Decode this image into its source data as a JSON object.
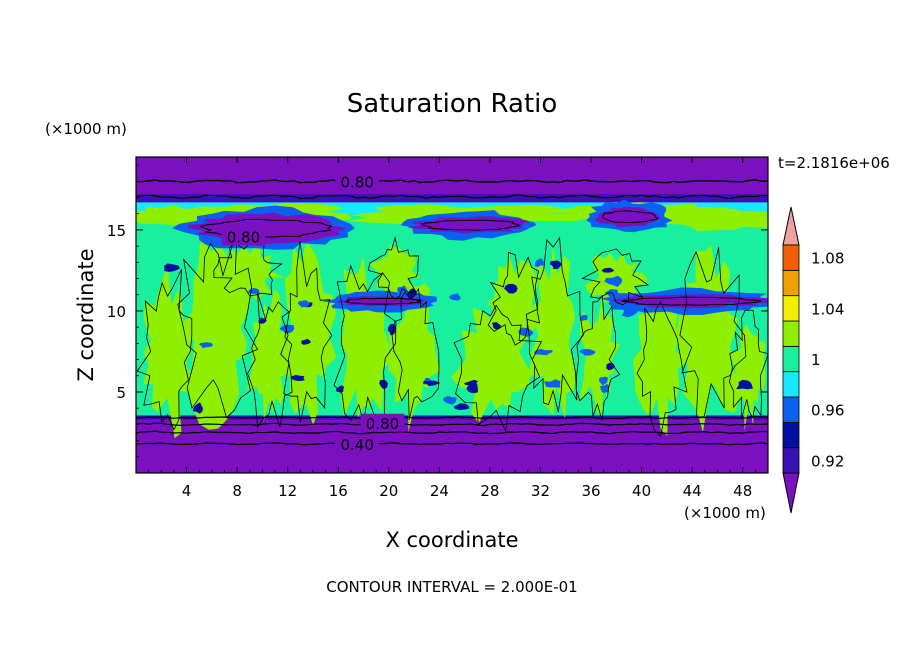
{
  "chart_data": {
    "type": "heatmap",
    "title": "Saturation Ratio",
    "xlabel": "X coordinate",
    "ylabel": "Z coordinate",
    "x_unit": "(×1000 m)",
    "y_unit": "(×1000 m)",
    "time_label": "t=2.1816e+06",
    "footer": "CONTOUR INTERVAL = 2.000E-01",
    "xlim": [
      0,
      50
    ],
    "ylim": [
      0,
      19.5
    ],
    "x_ticks": [
      4,
      8,
      12,
      16,
      20,
      24,
      28,
      32,
      36,
      40,
      44,
      48
    ],
    "y_ticks": [
      5,
      10,
      15
    ],
    "colorbar": {
      "levels": [
        0.92,
        0.94,
        0.96,
        0.98,
        1.0,
        1.02,
        1.04,
        1.06,
        1.08,
        1.1
      ],
      "labels": [
        "0.92",
        "0.96",
        "1",
        "1.04",
        "1.08"
      ],
      "label_values": [
        0.92,
        0.96,
        1.0,
        1.04,
        1.08
      ],
      "colors": [
        "#7a10c0",
        "#3a10b0",
        "#0010a0",
        "#0a60f0",
        "#18e8ff",
        "#18f0a0",
        "#8ef000",
        "#f0f000",
        "#f0a000",
        "#f06000",
        "#f02020",
        "#f0a0a0"
      ]
    },
    "contour_labels": [
      {
        "text": "0.80",
        "x": 17.5,
        "y": 18.0
      },
      {
        "text": "0.80",
        "x": 8.5,
        "y": 14.6
      },
      {
        "text": "0.80",
        "x": 19.5,
        "y": 3.1
      },
      {
        "text": "0.40",
        "x": 17.5,
        "y": 1.8
      }
    ],
    "regions": [
      {
        "kind": "band",
        "z": [
          0,
          3.4
        ],
        "value": 0.7
      },
      {
        "kind": "band",
        "z": [
          3.4,
          15.0
        ],
        "value": 0.99
      },
      {
        "kind": "band",
        "z": [
          15.0,
          17.0
        ],
        "value": 1.0
      },
      {
        "kind": "band",
        "z": [
          17.0,
          19.5
        ],
        "value": 0.7
      },
      {
        "kind": "blob",
        "x": [
          4.5,
          16.0
        ],
        "z": [
          14.2,
          16.0
        ],
        "value": 0.85
      },
      {
        "kind": "blob",
        "x": [
          22.0,
          31.0
        ],
        "z": [
          14.8,
          15.8
        ],
        "value": 0.85
      },
      {
        "kind": "blob",
        "x": [
          36.5,
          41.5
        ],
        "z": [
          15.2,
          16.4
        ],
        "value": 0.9
      },
      {
        "kind": "blob",
        "x": [
          16.0,
          23.0
        ],
        "z": [
          10.3,
          10.9
        ],
        "value": 0.88
      },
      {
        "kind": "blob",
        "x": [
          38.0,
          50.0
        ],
        "z": [
          10.2,
          11.0
        ],
        "value": 0.9
      }
    ]
  }
}
